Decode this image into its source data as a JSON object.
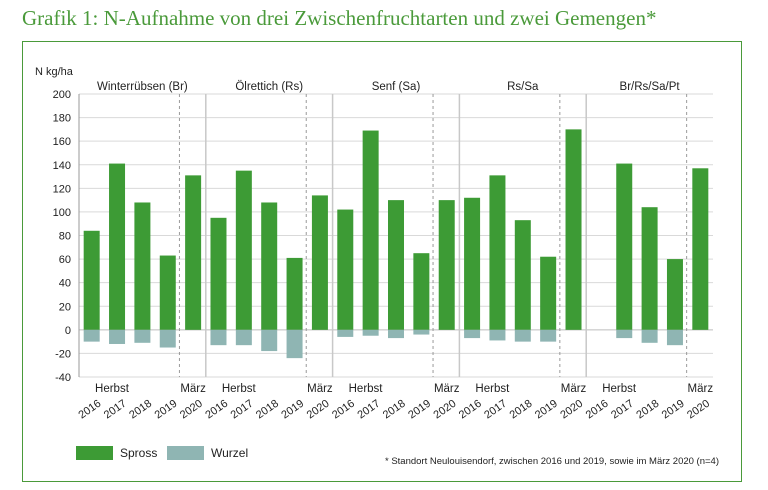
{
  "title": "Grafik 1: N-Aufnahme von drei Zwischenfruchtarten und zwei Gemengen*",
  "footnote": "* Standort Neulouisendorf,  zwischen 2016 und 2019, sowie im März 2020 (n=4)",
  "colors": {
    "spross": "#3d9b35",
    "wurzel": "#8fb5b3",
    "frame": "#4a9a3a",
    "grid": "#d9d9d9"
  },
  "chart_data": {
    "type": "bar",
    "ylabel": "N kg/ha",
    "ylim": [
      -40,
      200
    ],
    "yticks": [
      -40,
      -20,
      0,
      20,
      40,
      60,
      80,
      100,
      120,
      140,
      160,
      180,
      200
    ],
    "years": [
      "2016",
      "2017",
      "2018",
      "2019",
      "2020"
    ],
    "season_labels": {
      "herbst": "Herbst",
      "maerz": "März"
    },
    "legend": [
      "Spross",
      "Wurzel"
    ],
    "groups": [
      {
        "name": "Winterrübsen (Br)",
        "spross": [
          84,
          141,
          108,
          63,
          131
        ],
        "wurzel": [
          -10,
          -12,
          -11,
          -15,
          null
        ]
      },
      {
        "name": "Ölrettich (Rs)",
        "spross": [
          95,
          135,
          108,
          61,
          114
        ],
        "wurzel": [
          -13,
          -13,
          -18,
          -24,
          null
        ]
      },
      {
        "name": "Senf (Sa)",
        "spross": [
          102,
          169,
          110,
          65,
          110
        ],
        "wurzel": [
          -6,
          -5,
          -7,
          -4,
          null
        ]
      },
      {
        "name": "Rs/Sa",
        "spross": [
          112,
          131,
          93,
          62,
          170
        ],
        "wurzel": [
          -7,
          -9,
          -10,
          -10,
          null
        ]
      },
      {
        "name": "Br/Rs/Sa/Pt",
        "spross": [
          null,
          141,
          104,
          60,
          137
        ],
        "wurzel": [
          null,
          -7,
          -11,
          -13,
          null
        ]
      }
    ]
  }
}
